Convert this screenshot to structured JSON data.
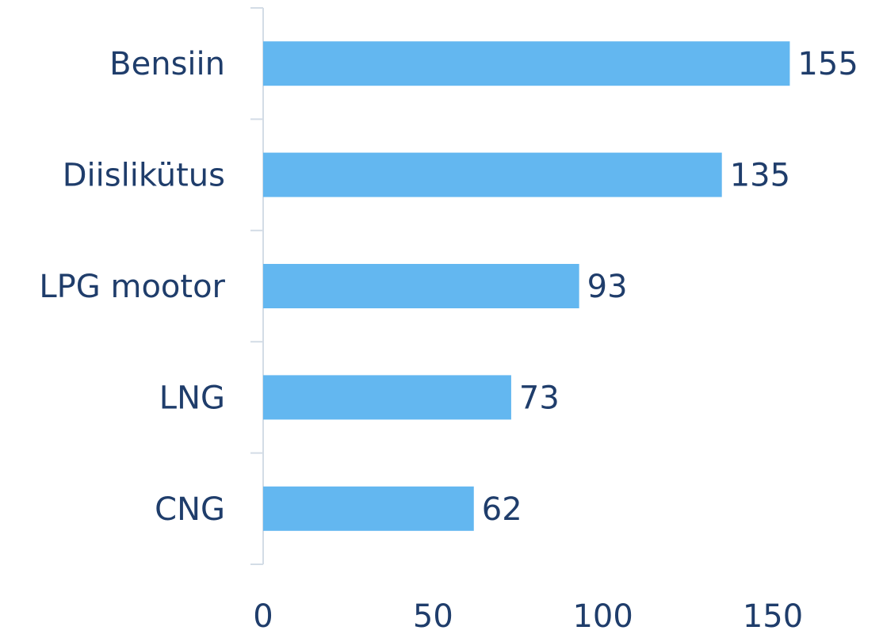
{
  "chart_data": {
    "type": "hbar",
    "categories": [
      "Bensiin",
      "Diislikütus",
      "LPG mootor",
      "LNG",
      "CNG"
    ],
    "values": [
      155,
      135,
      93,
      73,
      62
    ],
    "color": "#63b7f0",
    "xlim": [
      0,
      150
    ],
    "xticks": [
      0,
      50,
      100,
      150
    ],
    "grid": false
  }
}
